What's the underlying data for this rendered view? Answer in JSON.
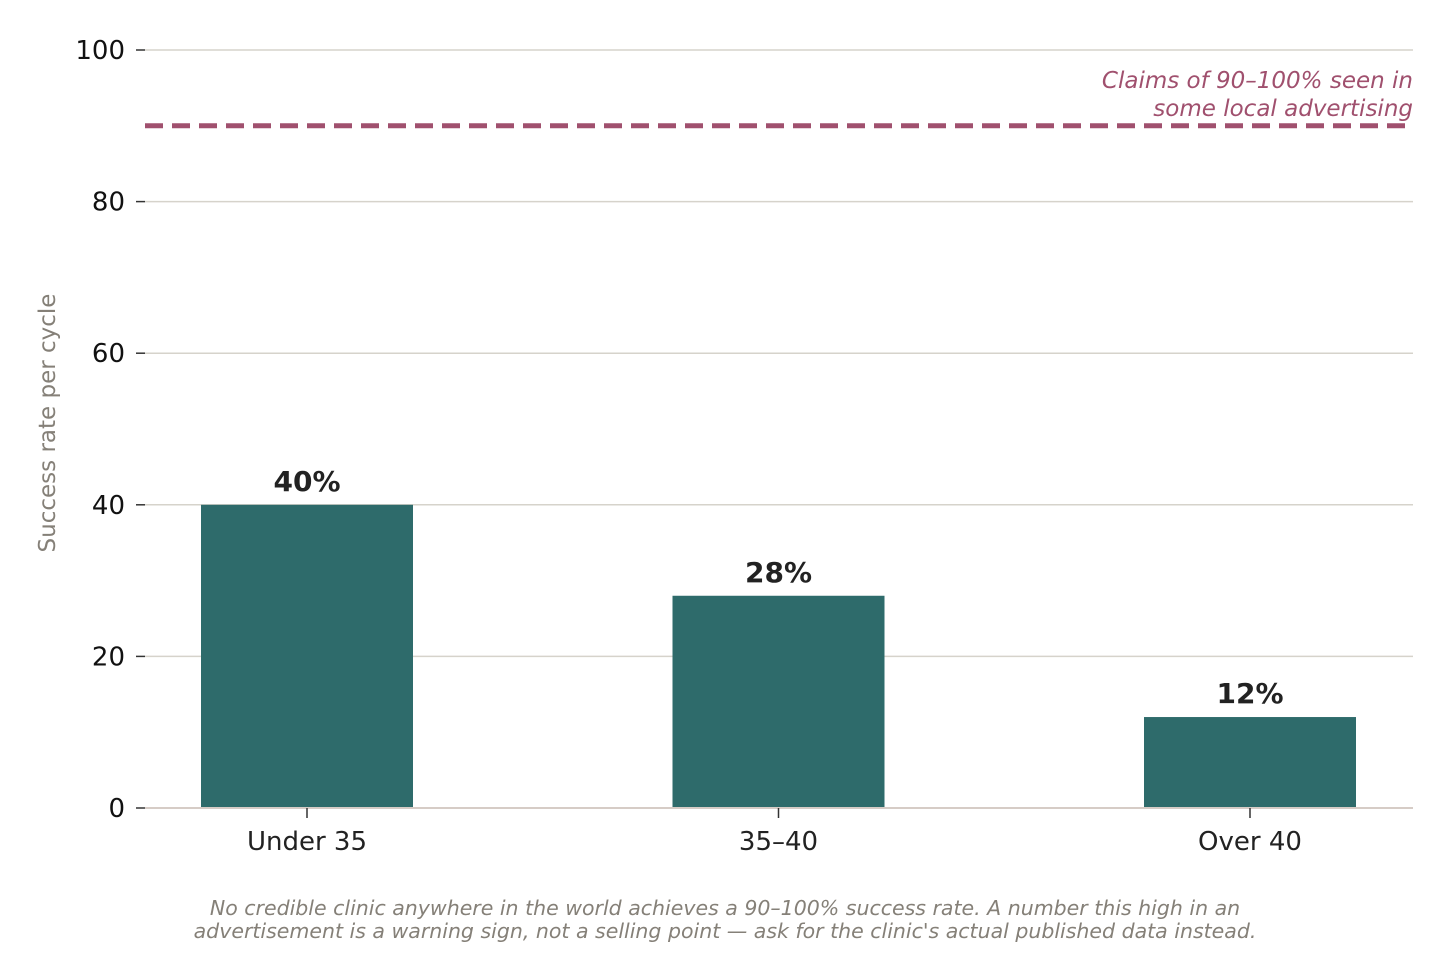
{
  "chart_data": {
    "type": "bar",
    "title": "",
    "xlabel": "",
    "ylabel": "Success rate per cycle",
    "categories": [
      "Under 35",
      "35–40",
      "Over 40"
    ],
    "values": [
      40,
      28,
      12
    ],
    "data_labels": [
      "40%",
      "28%",
      "12%"
    ],
    "ylim": [
      0,
      100
    ],
    "yticks": [
      "0",
      "20",
      "40",
      "60",
      "80",
      "100"
    ],
    "grid": "horizontal",
    "bar_color": "#2e6b6b",
    "reference_line": {
      "value": 90,
      "style": "dashed",
      "color": "#a0506e",
      "label_lines": [
        "Claims of 90–100% seen in",
        "some local advertising"
      ]
    },
    "footnote_lines": [
      "No credible clinic anywhere in the world achieves a 90–100% success rate. A number this high in an",
      "advertisement is a warning sign, not a selling point — ask for the clinic's actual published data instead."
    ]
  }
}
